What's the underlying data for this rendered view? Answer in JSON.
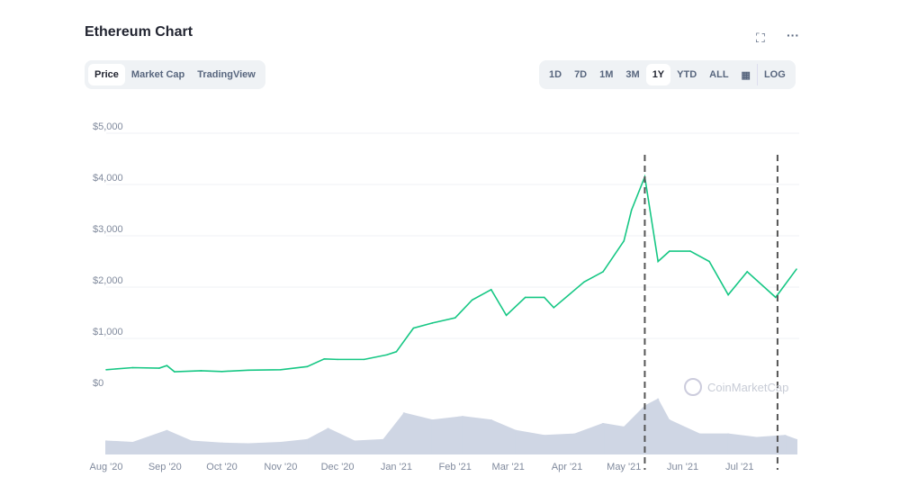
{
  "header": {
    "title": "Ethereum Chart",
    "fullscreen_icon": "fullscreen-icon",
    "more_icon": "more-icon"
  },
  "tabs": [
    {
      "label": "Price",
      "active": true
    },
    {
      "label": "Market Cap"
    },
    {
      "label": "TradingView"
    }
  ],
  "ranges": [
    {
      "label": "1D"
    },
    {
      "label": "7D"
    },
    {
      "label": "1M"
    },
    {
      "label": "3M"
    },
    {
      "label": "1Y",
      "active": true
    },
    {
      "label": "YTD"
    },
    {
      "label": "ALL"
    }
  ],
  "calendar_icon": "calendar-icon",
  "log_label": "LOG",
  "watermark": "CoinMarketCap",
  "colors": {
    "line": "#16c784",
    "volume": "#cfd6e4",
    "grid": "#eff2f5"
  },
  "chart_data": {
    "type": "line",
    "ylim": [
      0,
      5000
    ],
    "yticks": [
      "$0",
      "$1,000",
      "$2,000",
      "$3,000",
      "$4,000",
      "$5,000"
    ],
    "ytick_values": [
      0,
      1000,
      2000,
      3000,
      4000,
      5000
    ],
    "xticks": [
      {
        "label": "Aug '20",
        "date": "2020-08-01"
      },
      {
        "label": "Sep '20",
        "date": "2020-09-01"
      },
      {
        "label": "Oct '20",
        "date": "2020-10-01"
      },
      {
        "label": "Nov '20",
        "date": "2020-11-01"
      },
      {
        "label": "Dec '20",
        "date": "2020-12-01"
      },
      {
        "label": "Jan '21",
        "date": "2021-01-01"
      },
      {
        "label": "Feb '21",
        "date": "2021-02-01"
      },
      {
        "label": "Mar '21",
        "date": "2021-03-01"
      },
      {
        "label": "Apr '21",
        "date": "2021-04-01"
      },
      {
        "label": "May '21",
        "date": "2021-05-01"
      },
      {
        "label": "Jun '21",
        "date": "2021-06-01"
      },
      {
        "label": "Jul '21",
        "date": "2021-07-01"
      }
    ],
    "xlim": [
      "2020-08-01",
      "2021-07-31"
    ],
    "grid": true,
    "price": [
      [
        "2020-08-01",
        390
      ],
      [
        "2020-08-15",
        430
      ],
      [
        "2020-08-29",
        420
      ],
      [
        "2020-09-02",
        470
      ],
      [
        "2020-09-06",
        350
      ],
      [
        "2020-09-20",
        370
      ],
      [
        "2020-10-01",
        355
      ],
      [
        "2020-10-15",
        380
      ],
      [
        "2020-11-01",
        390
      ],
      [
        "2020-11-15",
        450
      ],
      [
        "2020-11-24",
        600
      ],
      [
        "2020-12-01",
        590
      ],
      [
        "2020-12-15",
        590
      ],
      [
        "2020-12-27",
        680
      ],
      [
        "2021-01-01",
        740
      ],
      [
        "2021-01-10",
        1200
      ],
      [
        "2021-01-20",
        1300
      ],
      [
        "2021-02-01",
        1400
      ],
      [
        "2021-02-10",
        1750
      ],
      [
        "2021-02-20",
        1950
      ],
      [
        "2021-02-28",
        1450
      ],
      [
        "2021-03-10",
        1800
      ],
      [
        "2021-03-20",
        1800
      ],
      [
        "2021-03-25",
        1600
      ],
      [
        "2021-04-10",
        2100
      ],
      [
        "2021-04-20",
        2300
      ],
      [
        "2021-05-01",
        2900
      ],
      [
        "2021-05-05",
        3500
      ],
      [
        "2021-05-12",
        4150
      ],
      [
        "2021-05-19",
        2500
      ],
      [
        "2021-05-25",
        2700
      ],
      [
        "2021-06-05",
        2700
      ],
      [
        "2021-06-15",
        2500
      ],
      [
        "2021-06-25",
        1850
      ],
      [
        "2021-07-05",
        2300
      ],
      [
        "2021-07-20",
        1800
      ],
      [
        "2021-07-31",
        2350
      ]
    ],
    "volume": [
      [
        "2020-08-01",
        2
      ],
      [
        "2020-08-15",
        1.8
      ],
      [
        "2020-09-02",
        3.5
      ],
      [
        "2020-09-15",
        2
      ],
      [
        "2020-10-01",
        1.7
      ],
      [
        "2020-10-15",
        1.6
      ],
      [
        "2020-11-01",
        1.8
      ],
      [
        "2020-11-15",
        2.2
      ],
      [
        "2020-11-26",
        3.8
      ],
      [
        "2020-12-10",
        2
      ],
      [
        "2020-12-25",
        2.2
      ],
      [
        "2021-01-05",
        6
      ],
      [
        "2021-01-20",
        5
      ],
      [
        "2021-02-05",
        5.5
      ],
      [
        "2021-02-20",
        5
      ],
      [
        "2021-03-05",
        3.5
      ],
      [
        "2021-03-20",
        2.8
      ],
      [
        "2021-04-05",
        3
      ],
      [
        "2021-04-20",
        4.5
      ],
      [
        "2021-05-01",
        4
      ],
      [
        "2021-05-12",
        7
      ],
      [
        "2021-05-19",
        8
      ],
      [
        "2021-05-25",
        5
      ],
      [
        "2021-06-10",
        3
      ],
      [
        "2021-06-25",
        3
      ],
      [
        "2021-07-10",
        2.5
      ],
      [
        "2021-07-25",
        2.8
      ],
      [
        "2021-07-31",
        2.2
      ]
    ],
    "markers": [
      "2021-05-12",
      "2021-07-21"
    ]
  }
}
